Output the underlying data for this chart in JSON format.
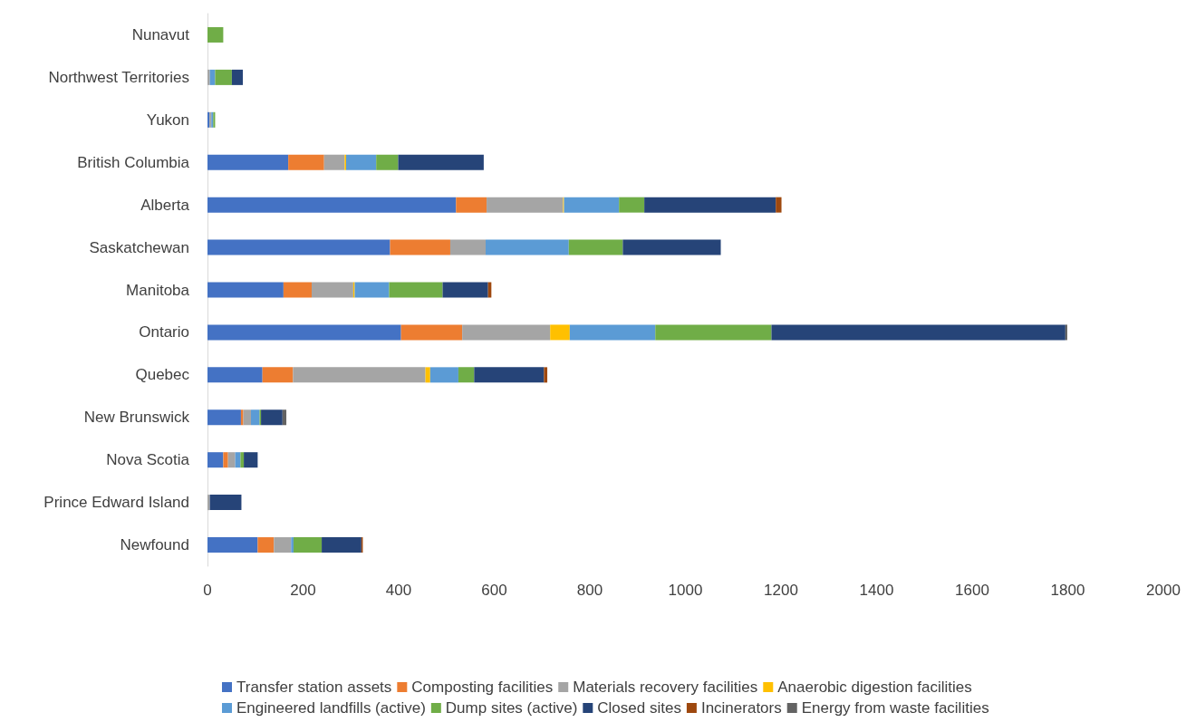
{
  "chart_data": {
    "type": "bar",
    "orientation": "horizontal",
    "stacked": true,
    "grid": false,
    "legend": "bottom",
    "categories": [
      "Nunavut",
      "Northwest Territories",
      "Yukon",
      "British Columbia",
      "Alberta",
      "Saskatchewan",
      "Manitoba",
      "Ontario",
      "Quebec",
      "New Brunswick",
      "Nova Scotia",
      "Prince Edward Island",
      "Newfound"
    ],
    "xlim": [
      0,
      2000
    ],
    "xticks": [
      0,
      200,
      400,
      600,
      800,
      1000,
      1200,
      1400,
      1600,
      1800,
      2000
    ],
    "series": [
      {
        "name": "Transfer station assets",
        "color": "#4472c4",
        "values": [
          0,
          0,
          4,
          169,
          520,
          382,
          159,
          405,
          115,
          70,
          33,
          0,
          105
        ]
      },
      {
        "name": "Composting facilities",
        "color": "#ed7d31",
        "values": [
          0,
          0,
          0,
          75,
          64,
          126,
          59,
          128,
          64,
          5,
          10,
          0,
          34
        ]
      },
      {
        "name": "Materials recovery facilities",
        "color": "#a5a5a5",
        "values": [
          0,
          5,
          4,
          43,
          160,
          74,
          87,
          184,
          277,
          16,
          15,
          5,
          36
        ]
      },
      {
        "name": "Anaerobic digestion facilities",
        "color": "#ffc000",
        "values": [
          0,
          0,
          0,
          3,
          2,
          0,
          3,
          41,
          10,
          0,
          0,
          0,
          0
        ]
      },
      {
        "name": "Engineered landfills (active)",
        "color": "#5b9bd5",
        "values": [
          0,
          11,
          4,
          63,
          115,
          174,
          72,
          179,
          59,
          18,
          11,
          0,
          5
        ]
      },
      {
        "name": "Dump sites (active)",
        "color": "#70ad47",
        "values": [
          33,
          35,
          4,
          46,
          53,
          113,
          112,
          243,
          33,
          3,
          7,
          0,
          59
        ]
      },
      {
        "name": "Closed sites",
        "color": "#264478",
        "values": [
          0,
          23,
          0,
          179,
          275,
          205,
          95,
          615,
          146,
          45,
          29,
          66,
          83
        ]
      },
      {
        "name": "Incinerators",
        "color": "#9e480e",
        "values": [
          0,
          0,
          0,
          0,
          12,
          0,
          7,
          0,
          7,
          0,
          0,
          0,
          3
        ]
      },
      {
        "name": "Energy from waste facilities",
        "color": "#636363",
        "values": [
          0,
          0,
          0,
          0,
          0,
          0,
          0,
          4,
          0,
          8,
          0,
          0,
          0
        ]
      }
    ]
  }
}
